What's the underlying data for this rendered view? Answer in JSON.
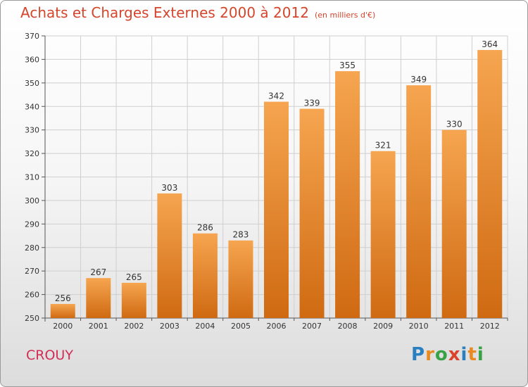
{
  "header": {
    "title": "Achats et Charges Externes 2000 à 2012",
    "subtitle": "(en milliers d'€)"
  },
  "footer": {
    "town": "CROUY",
    "logo_text": "Proxiti",
    "logo_letters": [
      {
        "ch": "P",
        "color": "#2a7fc0"
      },
      {
        "ch": "r",
        "color": "#e98a20"
      },
      {
        "ch": "o",
        "color": "#3aa246"
      },
      {
        "ch": "x",
        "color": "#d9452c"
      },
      {
        "ch": "i",
        "color": "#2a7fc0"
      },
      {
        "ch": "t",
        "color": "#e98a20"
      },
      {
        "ch": "i",
        "color": "#3aa246"
      }
    ]
  },
  "colors": {
    "title": "#d4452c",
    "town": "#d22d55",
    "bar_top": "#f6a550",
    "bar_bottom": "#cf6a12",
    "grid": "#cfcfcf",
    "axis_text": "#333333"
  },
  "chart_data": {
    "type": "bar",
    "title": "Achats et Charges Externes 2000 à 2012",
    "subtitle": "(en milliers d'€)",
    "categories": [
      "2000",
      "2001",
      "2002",
      "2003",
      "2004",
      "2005",
      "2006",
      "2007",
      "2008",
      "2009",
      "2010",
      "2011",
      "2012"
    ],
    "values": [
      256,
      267,
      265,
      303,
      286,
      283,
      342,
      339,
      355,
      321,
      349,
      330,
      364
    ],
    "ylim": [
      250,
      370
    ],
    "yticks": [
      250,
      260,
      270,
      280,
      290,
      300,
      310,
      320,
      330,
      340,
      350,
      360,
      370
    ],
    "grid": true,
    "data_labels": true
  }
}
